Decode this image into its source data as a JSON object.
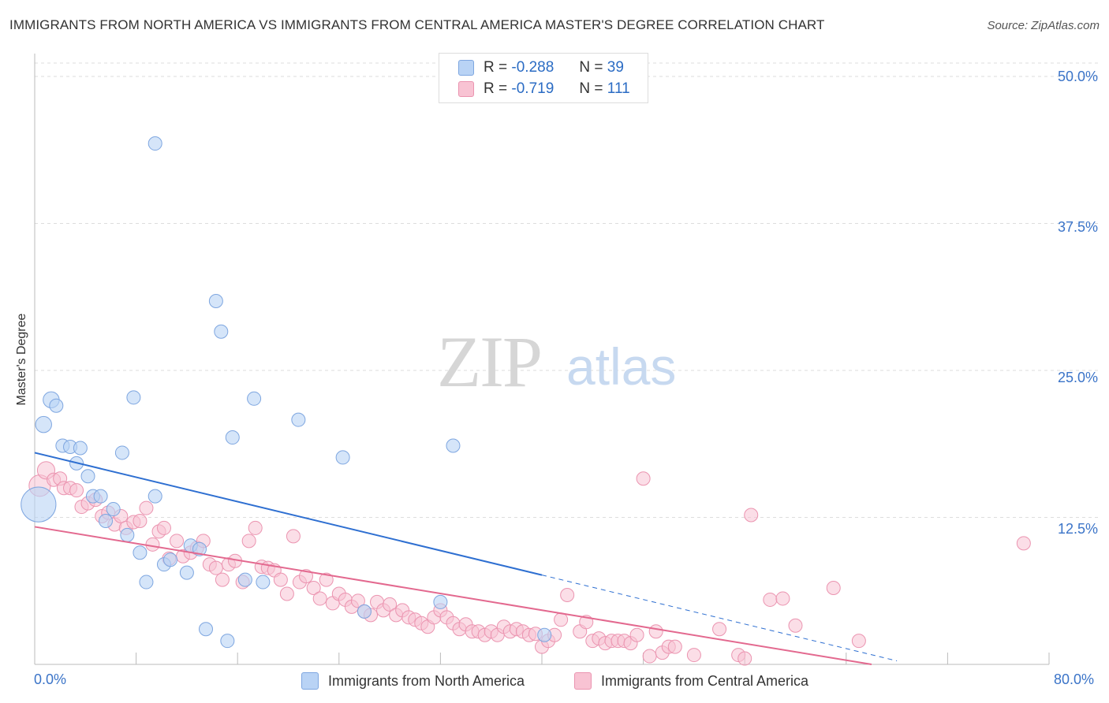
{
  "title": "IMMIGRANTS FROM NORTH AMERICA VS IMMIGRANTS FROM CENTRAL AMERICA MASTER'S DEGREE CORRELATION CHART",
  "source": "Source: ZipAtlas.com",
  "watermark": {
    "zip": "ZIP",
    "atlas": "atlas"
  },
  "colors": {
    "blue_fill": "#b9d3f5",
    "blue_stroke": "#7ea6e0",
    "blue_line": "#2e6fd1",
    "pink_fill": "#f8c3d3",
    "pink_stroke": "#eb94b0",
    "pink_line": "#e3698f",
    "tick_text": "#3b74c8",
    "grid": "#dddddd"
  },
  "legend": {
    "rows": [
      {
        "r_label": "R =",
        "r_value": "-0.288",
        "n_label": "N =",
        "n_value": "39"
      },
      {
        "r_label": "R =",
        "r_value": "-0.719",
        "n_label": "N =",
        "n_value": "111"
      }
    ]
  },
  "bottom_legend": {
    "series1": "Immigrants from North America",
    "series2": "Immigrants from Central America"
  },
  "chart_data": {
    "type": "scatter",
    "title": "IMMIGRANTS FROM NORTH AMERICA VS IMMIGRANTS FROM CENTRAL AMERICA MASTER'S DEGREE CORRELATION CHART",
    "xlabel": "",
    "ylabel": "Master's Degree",
    "xlim": [
      0,
      80
    ],
    "ylim": [
      0,
      50
    ],
    "x_tick_labels": [
      "0.0%",
      "80.0%"
    ],
    "y_ticks": [
      12.5,
      25.0,
      37.5,
      50.0
    ],
    "y_tick_labels": [
      "12.5%",
      "25.0%",
      "37.5%",
      "50.0%"
    ],
    "series": [
      {
        "name": "Immigrants from North America",
        "r": -0.288,
        "n": 39,
        "trend": {
          "x0": 0,
          "y0": 18.0,
          "x1": 40,
          "y1": 7.6,
          "dash_to_x": 68,
          "dash_to_y": 0.3
        },
        "points": [
          [
            0.3,
            13.6,
            2.6
          ],
          [
            0.7,
            20.4,
            1.2
          ],
          [
            1.3,
            22.5,
            1.2
          ],
          [
            1.7,
            22.0,
            1.0
          ],
          [
            2.2,
            18.6,
            1.0
          ],
          [
            2.8,
            18.5,
            1.0
          ],
          [
            3.6,
            18.4,
            1.0
          ],
          [
            3.3,
            17.1,
            1.0
          ],
          [
            4.2,
            16.0,
            1.0
          ],
          [
            4.6,
            14.3,
            1.0
          ],
          [
            5.2,
            14.3,
            1.0
          ],
          [
            5.6,
            12.2,
            1.0
          ],
          [
            6.2,
            13.2,
            1.0
          ],
          [
            6.9,
            18.0,
            1.0
          ],
          [
            7.3,
            11.0,
            1.0
          ],
          [
            7.8,
            22.7,
            1.0
          ],
          [
            8.3,
            9.5,
            1.0
          ],
          [
            8.8,
            7.0,
            1.0
          ],
          [
            9.5,
            14.3,
            1.0
          ],
          [
            9.5,
            44.3,
            1.0
          ],
          [
            10.2,
            8.5,
            1.0
          ],
          [
            10.7,
            8.9,
            1.0
          ],
          [
            12.0,
            7.8,
            1.0
          ],
          [
            12.3,
            10.1,
            1.0
          ],
          [
            13.0,
            9.8,
            1.0
          ],
          [
            13.5,
            3.0,
            1.0
          ],
          [
            14.3,
            30.9,
            1.0
          ],
          [
            14.7,
            28.3,
            1.0
          ],
          [
            15.2,
            2.0,
            1.0
          ],
          [
            15.6,
            19.3,
            1.0
          ],
          [
            16.6,
            7.2,
            1.0
          ],
          [
            17.3,
            22.6,
            1.0
          ],
          [
            18.0,
            7.0,
            1.0
          ],
          [
            20.8,
            20.8,
            1.0
          ],
          [
            24.3,
            17.6,
            1.0
          ],
          [
            26.0,
            4.5,
            1.0
          ],
          [
            32.0,
            5.3,
            1.0
          ],
          [
            33.0,
            18.6,
            1.0
          ],
          [
            40.2,
            2.5,
            1.0
          ]
        ]
      },
      {
        "name": "Immigrants from Central America",
        "r": -0.719,
        "n": 111,
        "trend": {
          "x0": 0,
          "y0": 11.7,
          "x1": 66,
          "y1": 0.0
        },
        "points": [
          [
            0.4,
            15.2,
            1.6
          ],
          [
            0.9,
            16.5,
            1.3
          ],
          [
            1.5,
            15.7,
            1.0
          ],
          [
            2.0,
            15.8,
            1.0
          ],
          [
            2.3,
            15.0,
            1.0
          ],
          [
            2.8,
            15.0,
            1.0
          ],
          [
            3.3,
            14.8,
            1.0
          ],
          [
            3.7,
            13.4,
            1.0
          ],
          [
            4.2,
            13.7,
            1.0
          ],
          [
            4.8,
            14.0,
            1.0
          ],
          [
            5.3,
            12.6,
            1.0
          ],
          [
            5.8,
            12.9,
            1.0
          ],
          [
            6.3,
            11.9,
            1.0
          ],
          [
            6.8,
            12.6,
            1.0
          ],
          [
            7.2,
            11.6,
            1.0
          ],
          [
            7.8,
            12.1,
            1.0
          ],
          [
            8.3,
            12.2,
            1.0
          ],
          [
            8.8,
            13.3,
            1.0
          ],
          [
            9.3,
            10.2,
            1.0
          ],
          [
            9.8,
            11.3,
            1.0
          ],
          [
            10.2,
            11.6,
            1.0
          ],
          [
            10.6,
            9.0,
            1.0
          ],
          [
            11.2,
            10.5,
            1.0
          ],
          [
            11.7,
            9.2,
            1.0
          ],
          [
            12.3,
            9.5,
            1.0
          ],
          [
            12.8,
            9.9,
            1.0
          ],
          [
            13.3,
            10.5,
            1.0
          ],
          [
            13.8,
            8.5,
            1.0
          ],
          [
            14.3,
            8.2,
            1.0
          ],
          [
            14.8,
            7.2,
            1.0
          ],
          [
            15.3,
            8.5,
            1.0
          ],
          [
            15.8,
            8.8,
            1.0
          ],
          [
            16.4,
            7.0,
            1.0
          ],
          [
            16.9,
            10.5,
            1.0
          ],
          [
            17.4,
            11.6,
            1.0
          ],
          [
            17.9,
            8.3,
            1.0
          ],
          [
            18.4,
            8.2,
            1.0
          ],
          [
            18.9,
            8.0,
            1.0
          ],
          [
            19.4,
            7.2,
            1.0
          ],
          [
            19.9,
            6.0,
            1.0
          ],
          [
            20.4,
            10.9,
            1.0
          ],
          [
            20.9,
            7.0,
            1.0
          ],
          [
            21.4,
            7.5,
            1.0
          ],
          [
            22.0,
            6.5,
            1.0
          ],
          [
            22.5,
            5.6,
            1.0
          ],
          [
            23.0,
            7.2,
            1.0
          ],
          [
            23.5,
            5.2,
            1.0
          ],
          [
            24.0,
            6.0,
            1.0
          ],
          [
            24.5,
            5.5,
            1.0
          ],
          [
            25.0,
            4.9,
            1.0
          ],
          [
            25.5,
            5.4,
            1.0
          ],
          [
            26.0,
            4.5,
            1.0
          ],
          [
            26.5,
            4.2,
            1.0
          ],
          [
            27.0,
            5.3,
            1.0
          ],
          [
            27.5,
            4.6,
            1.0
          ],
          [
            28.0,
            5.1,
            1.0
          ],
          [
            28.5,
            4.2,
            1.0
          ],
          [
            29.0,
            4.6,
            1.0
          ],
          [
            29.5,
            4.0,
            1.0
          ],
          [
            30.0,
            3.8,
            1.0
          ],
          [
            30.5,
            3.5,
            1.0
          ],
          [
            31.0,
            3.2,
            1.0
          ],
          [
            31.5,
            4.0,
            1.0
          ],
          [
            32.0,
            4.6,
            1.0
          ],
          [
            32.5,
            4.0,
            1.0
          ],
          [
            33.0,
            3.5,
            1.0
          ],
          [
            33.5,
            3.0,
            1.0
          ],
          [
            34.0,
            3.4,
            1.0
          ],
          [
            34.5,
            2.8,
            1.0
          ],
          [
            35.0,
            2.8,
            1.0
          ],
          [
            35.5,
            2.5,
            1.0
          ],
          [
            36.0,
            2.8,
            1.0
          ],
          [
            36.5,
            2.5,
            1.0
          ],
          [
            37.0,
            3.2,
            1.0
          ],
          [
            37.5,
            2.8,
            1.0
          ],
          [
            38.0,
            3.0,
            1.0
          ],
          [
            38.5,
            2.8,
            1.0
          ],
          [
            39.0,
            2.5,
            1.0
          ],
          [
            39.5,
            2.6,
            1.0
          ],
          [
            40.0,
            1.5,
            1.0
          ],
          [
            40.5,
            2.0,
            1.0
          ],
          [
            41.0,
            2.5,
            1.0
          ],
          [
            41.5,
            3.8,
            1.0
          ],
          [
            42.0,
            5.9,
            1.0
          ],
          [
            43.0,
            2.8,
            1.0
          ],
          [
            43.5,
            3.6,
            1.0
          ],
          [
            44.0,
            2.0,
            1.0
          ],
          [
            44.5,
            2.2,
            1.0
          ],
          [
            45.0,
            1.8,
            1.0
          ],
          [
            45.5,
            2.0,
            1.0
          ],
          [
            46.0,
            2.0,
            1.0
          ],
          [
            46.5,
            2.0,
            1.0
          ],
          [
            47.0,
            1.8,
            1.0
          ],
          [
            47.5,
            2.5,
            1.0
          ],
          [
            48.0,
            15.8,
            1.0
          ],
          [
            48.5,
            0.7,
            1.0
          ],
          [
            49.0,
            2.8,
            1.0
          ],
          [
            49.5,
            1.0,
            1.0
          ],
          [
            50.0,
            1.5,
            1.0
          ],
          [
            50.5,
            1.5,
            1.0
          ],
          [
            52.0,
            0.8,
            1.0
          ],
          [
            54.0,
            3.0,
            1.0
          ],
          [
            55.5,
            0.8,
            1.0
          ],
          [
            56.0,
            0.5,
            1.0
          ],
          [
            56.5,
            12.7,
            1.0
          ],
          [
            58.0,
            5.5,
            1.0
          ],
          [
            59.0,
            5.6,
            1.0
          ],
          [
            60.0,
            3.3,
            1.0
          ],
          [
            63.0,
            6.5,
            1.0
          ],
          [
            65.0,
            2.0,
            1.0
          ],
          [
            78.0,
            10.3,
            1.0
          ]
        ]
      }
    ]
  }
}
